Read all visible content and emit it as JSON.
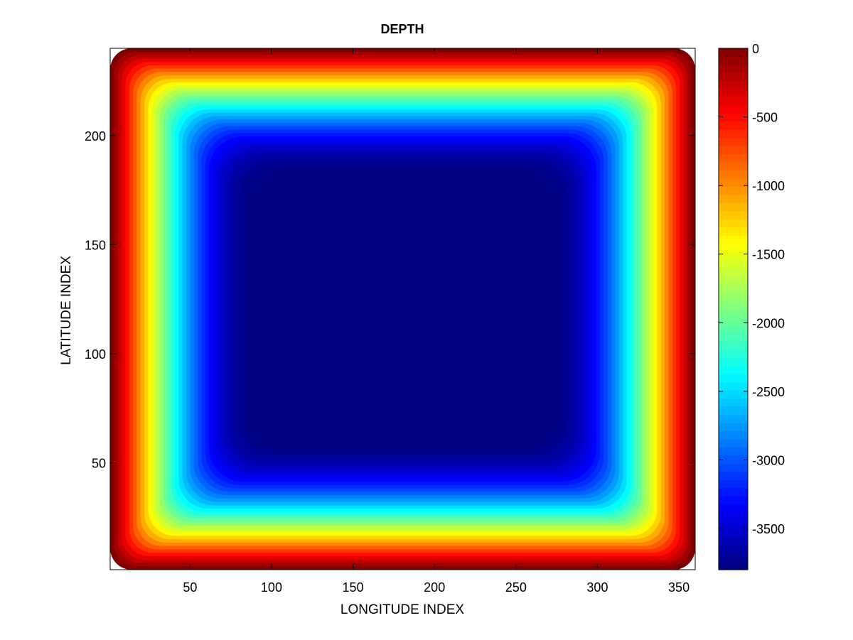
{
  "chart_data": {
    "type": "heatmap",
    "title": "DEPTH",
    "xlabel": "LONGITUDE INDEX",
    "ylabel": "LATITUDE INDEX",
    "xlim": [
      1,
      360
    ],
    "ylim": [
      1,
      240
    ],
    "x_ticks": [
      50,
      100,
      150,
      200,
      250,
      300,
      350
    ],
    "y_ticks": [
      50,
      100,
      150,
      200
    ],
    "grid": false,
    "colormap": "jet",
    "colorbar": {
      "position": "right",
      "range": [
        -3800,
        0
      ],
      "ticks": [
        0,
        -500,
        -1000,
        -1500,
        -2000,
        -2500,
        -3000,
        -3500
      ]
    },
    "field": {
      "description_values": {
        "interior_depth": -3800,
        "coast_depth": 0,
        "shelf_width_x": 40,
        "shelf_width_y": 40
      }
    }
  }
}
